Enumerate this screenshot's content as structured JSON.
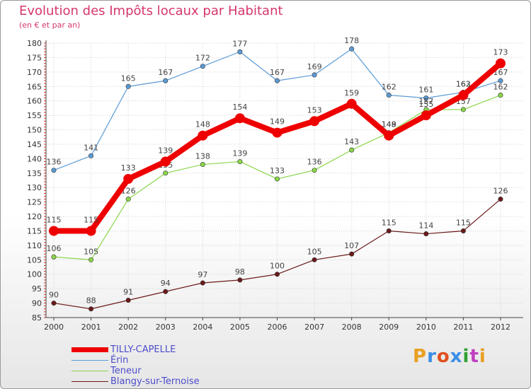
{
  "chart_data": {
    "type": "line",
    "title": "Evolution des Impôts locaux par Habitant",
    "subtitle": "(en € et par an)",
    "x": [
      "2000",
      "2001",
      "2002",
      "2003",
      "2004",
      "2005",
      "2006",
      "2007",
      "2008",
      "2009",
      "2010",
      "2011",
      "2012"
    ],
    "ylim": [
      85,
      180
    ],
    "yticks": [
      85,
      90,
      95,
      100,
      105,
      110,
      115,
      120,
      125,
      130,
      135,
      140,
      145,
      150,
      155,
      160,
      165,
      170,
      175,
      180
    ],
    "series": [
      {
        "name": "Érin",
        "color": "#5b9bd5",
        "values": [
          136,
          141,
          165,
          167,
          172,
          177,
          167,
          169,
          178,
          162,
          161,
          163,
          167
        ]
      },
      {
        "name": "Teneur",
        "color": "#8ad64a",
        "values": [
          106,
          105,
          126,
          135,
          138,
          139,
          133,
          136,
          143,
          149,
          157,
          157,
          162
        ]
      },
      {
        "name": "Blangy-sur-Ternoise",
        "color": "#6b1a1a",
        "values": [
          90,
          88,
          91,
          94,
          97,
          98,
          100,
          105,
          107,
          115,
          114,
          115,
          126
        ]
      },
      {
        "name": "TILLY-CAPELLE",
        "color": "#ee0000",
        "values": [
          115,
          115,
          133,
          139,
          148,
          154,
          149,
          153,
          159,
          148,
          155,
          162,
          173
        ]
      }
    ]
  },
  "legend": [
    {
      "label": "TILLY-CAPELLE",
      "color": "#ee0000"
    },
    {
      "label": "Érin",
      "color": "#5b9bd5"
    },
    {
      "label": "Teneur",
      "color": "#8ad64a"
    },
    {
      "label": "Blangy-sur-Ternoise",
      "color": "#6b1a1a"
    }
  ],
  "logo": {
    "text": "Proxiti",
    "colors": [
      "#e8a020",
      "#3a8ee6",
      "#e05020",
      "#3a8ee6",
      "#30a030",
      "#c040c0",
      "#e8a020"
    ]
  }
}
